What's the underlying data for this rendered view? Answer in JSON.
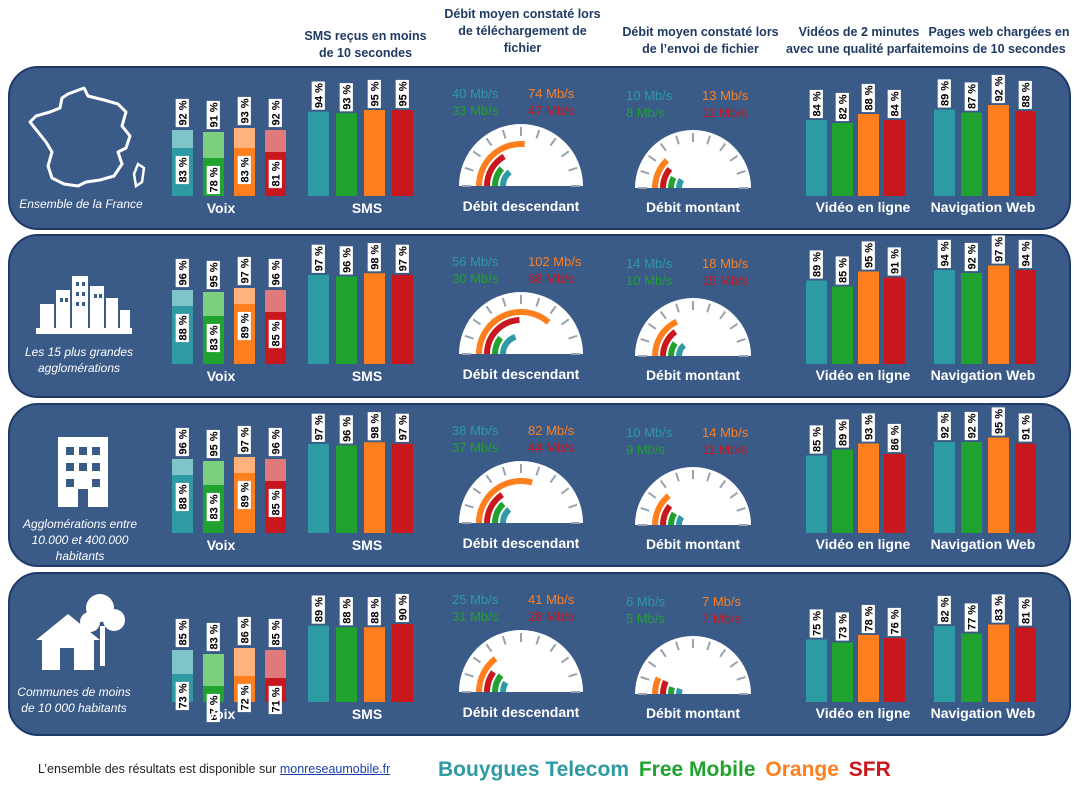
{
  "column_headers": {
    "sms": "SMS reçus en moins de 10 secondes",
    "download": "Débit moyen constaté lors de téléchargement  de fichier",
    "upload": "Débit moyen constaté lors de l’envoi  de fichier",
    "video": "Vidéos de 2 minutes avec une qualité parfaite",
    "web": "Pages web chargées en moins de 10 secondes"
  },
  "operators": [
    {
      "name": "Bouygues Telecom",
      "color": "#2e9aa4",
      "light": "#7fc4c9",
      "dark": "#2e9aa4"
    },
    {
      "name": "Free Mobile",
      "color": "#1fa22e",
      "light": "#7ccf7f",
      "dark": "#1fa22e"
    },
    {
      "name": "Orange",
      "color": "#ff7f1e",
      "light": "#ffb27a",
      "dark": "#ff7f1e"
    },
    {
      "name": "SFR",
      "color": "#c8181e",
      "light": "#e07a7a",
      "dark": "#c8181e"
    }
  ],
  "chart_labels": {
    "voix": "Voix",
    "sms": "SMS",
    "download": "Débit descendant",
    "upload": "Débit montant",
    "video": "Vidéo en ligne",
    "web": "Navigation Web"
  },
  "chart_data": {
    "type": "bar",
    "units": "%",
    "regions": [
      {
        "label": "Ensemble de la France",
        "voix_total": [
          92,
          91,
          93,
          92
        ],
        "voix_perfect": [
          83,
          78,
          83,
          81
        ],
        "sms": [
          94,
          93,
          95,
          95
        ],
        "download_mbps": [
          "40 Mb/s",
          "33 Mb/s",
          "74 Mb/s",
          "47 Mb/s"
        ],
        "download_values": [
          40,
          33,
          74,
          47
        ],
        "upload_mbps": [
          "10 Mb/s",
          "8 Mb/s",
          "13 Mb/s",
          "11 Mb/s"
        ],
        "upload_values": [
          10,
          8,
          13,
          11
        ],
        "video": [
          84,
          82,
          88,
          84
        ],
        "web": [
          89,
          87,
          92,
          88
        ]
      },
      {
        "label": "Les 15 plus grandes agglomérations",
        "voix_total": [
          96,
          95,
          97,
          96
        ],
        "voix_perfect": [
          88,
          83,
          89,
          85
        ],
        "sms": [
          97,
          96,
          98,
          97
        ],
        "download_mbps": [
          "56 Mb/s",
          "30 Mb/s",
          "102 Mb/s",
          "68 Mb/s"
        ],
        "download_values": [
          56,
          30,
          102,
          68
        ],
        "upload_mbps": [
          "14 Mb/s",
          "10 Mb/s",
          "18 Mb/s",
          "15 Mb/s"
        ],
        "upload_values": [
          14,
          10,
          18,
          15
        ],
        "video": [
          89,
          85,
          95,
          91
        ],
        "web": [
          94,
          92,
          97,
          94
        ]
      },
      {
        "label": "Agglomérations entre 10.000 et 400.000 habitants",
        "voix_total": [
          96,
          95,
          97,
          96
        ],
        "voix_perfect": [
          88,
          83,
          89,
          85
        ],
        "sms": [
          97,
          96,
          98,
          97
        ],
        "download_mbps": [
          "38 Mb/s",
          "37 Mb/s",
          "82 Mb/s",
          "44 Mb/s"
        ],
        "download_values": [
          38,
          37,
          82,
          44
        ],
        "upload_mbps": [
          "10 Mb/s",
          "9 Mb/s",
          "14 Mb/s",
          "11 Mb/s"
        ],
        "upload_values": [
          10,
          9,
          14,
          11
        ],
        "video": [
          85,
          89,
          93,
          86
        ],
        "web": [
          92,
          92,
          95,
          91
        ]
      },
      {
        "label": "Communes de moins de 10 000 habitants",
        "voix_total": [
          85,
          83,
          86,
          85
        ],
        "voix_perfect": [
          73,
          67,
          72,
          71
        ],
        "sms": [
          89,
          88,
          88,
          90
        ],
        "download_mbps": [
          "25 Mb/s",
          "31 Mb/s",
          "41 Mb/s",
          "28 Mb/s"
        ],
        "download_values": [
          25,
          31,
          41,
          28
        ],
        "upload_mbps": [
          "6 Mb/s",
          "5 Mb/s",
          "7 Mb/s",
          "7 Mb/s"
        ],
        "upload_values": [
          6,
          5,
          7,
          7
        ],
        "video": [
          75,
          73,
          78,
          76
        ],
        "web": [
          82,
          77,
          83,
          81
        ]
      }
    ]
  },
  "footer": {
    "text": "L’ensemble des résultats est disponible sur",
    "link": "monreseaumobile.fr"
  }
}
